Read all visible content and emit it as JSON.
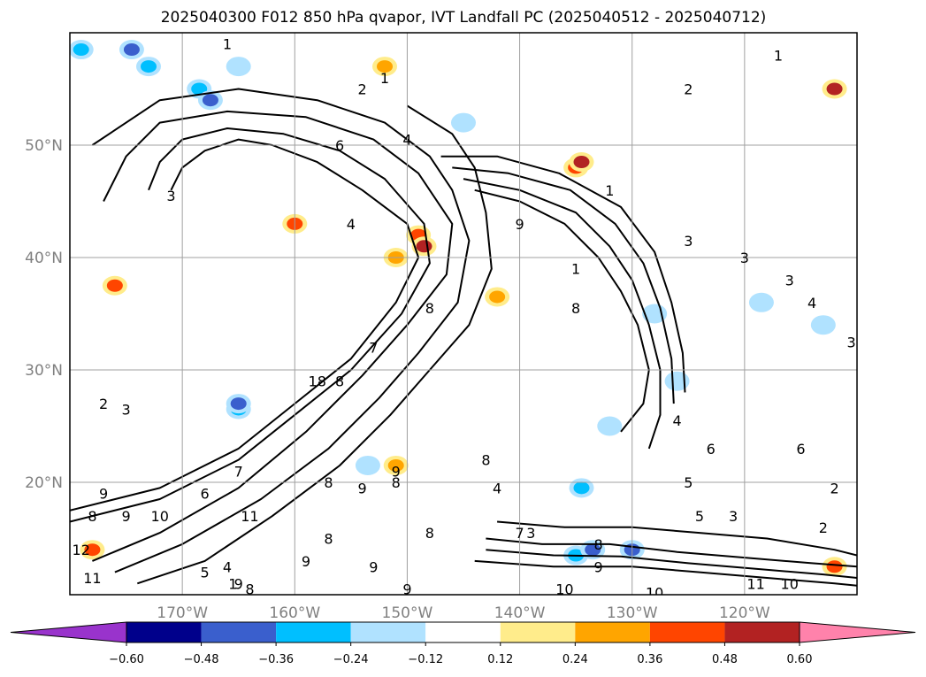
{
  "chart_data": {
    "type": "map",
    "title": "2025040300 F012 850 hPa qvapor, IVT Landfall PC (2025040512 - 2025040712)",
    "lon_range": [
      -180,
      -110
    ],
    "lat_range": [
      10,
      60
    ],
    "lat_ticks": [
      "20°N",
      "30°N",
      "40°N",
      "50°N"
    ],
    "lat_values": [
      20,
      30,
      40,
      50
    ],
    "lon_ticks": [
      "170°W",
      "160°W",
      "150°W",
      "140°W",
      "130°W",
      "120°W"
    ],
    "lon_values": [
      -170,
      -160,
      -150,
      -140,
      -130,
      -120
    ],
    "grid": true,
    "colorbar": {
      "orientation": "horizontal",
      "extend": "both",
      "ticks": [
        "−0.60",
        "−0.48",
        "−0.36",
        "−0.24",
        "−0.12",
        "0.12",
        "0.24",
        "0.36",
        "0.48",
        "0.60"
      ],
      "boundaries": [
        -0.6,
        -0.48,
        -0.36,
        -0.24,
        -0.12,
        0.12,
        0.24,
        0.36,
        0.48,
        0.6
      ],
      "colors": [
        "#9933cc",
        "#00008b",
        "#3a5fcd",
        "#00bfff",
        "#b0e2ff",
        "#ffffff",
        "#ffec8b",
        "#ffa500",
        "#ff4500",
        "#b22222",
        "#ff82ab"
      ]
    },
    "contour_labels": [
      {
        "text": "1",
        "lon": -166,
        "lat": 59
      },
      {
        "text": "2",
        "lon": -154,
        "lat": 55
      },
      {
        "text": "1",
        "lon": -152,
        "lat": 56
      },
      {
        "text": "1",
        "lon": -117,
        "lat": 58
      },
      {
        "text": "2",
        "lon": -125,
        "lat": 55
      },
      {
        "text": "6",
        "lon": -156,
        "lat": 50
      },
      {
        "text": "4",
        "lon": -150,
        "lat": 50.5
      },
      {
        "text": "3",
        "lon": -171,
        "lat": 45.5
      },
      {
        "text": "4",
        "lon": -155,
        "lat": 43
      },
      {
        "text": "9",
        "lon": -140,
        "lat": 43
      },
      {
        "text": "1",
        "lon": -132,
        "lat": 46
      },
      {
        "text": "3",
        "lon": -125,
        "lat": 41.5
      },
      {
        "text": "1",
        "lon": -135,
        "lat": 39
      },
      {
        "text": "3",
        "lon": -120,
        "lat": 40
      },
      {
        "text": "3",
        "lon": -116,
        "lat": 38
      },
      {
        "text": "4",
        "lon": -114,
        "lat": 36
      },
      {
        "text": "8",
        "lon": -148,
        "lat": 35.5
      },
      {
        "text": "8",
        "lon": -135,
        "lat": 35.5
      },
      {
        "text": "3",
        "lon": -110.5,
        "lat": 32.5
      },
      {
        "text": "7",
        "lon": -153,
        "lat": 32
      },
      {
        "text": "8",
        "lon": -156,
        "lat": 29
      },
      {
        "text": "18",
        "lon": -158,
        "lat": 29
      },
      {
        "text": "2",
        "lon": -177,
        "lat": 27
      },
      {
        "text": "3",
        "lon": -175,
        "lat": 26.5
      },
      {
        "text": "4",
        "lon": -126,
        "lat": 25.5
      },
      {
        "text": "6",
        "lon": -123,
        "lat": 23
      },
      {
        "text": "6",
        "lon": -115,
        "lat": 23
      },
      {
        "text": "8",
        "lon": -143,
        "lat": 22
      },
      {
        "text": "7",
        "lon": -165,
        "lat": 21
      },
      {
        "text": "8",
        "lon": -157,
        "lat": 20
      },
      {
        "text": "9",
        "lon": -154,
        "lat": 19.5
      },
      {
        "text": "8",
        "lon": -151,
        "lat": 20
      },
      {
        "text": "9",
        "lon": -151,
        "lat": 21
      },
      {
        "text": "4",
        "lon": -142,
        "lat": 19.5
      },
      {
        "text": "5",
        "lon": -125,
        "lat": 20
      },
      {
        "text": "2",
        "lon": -112,
        "lat": 19.5
      },
      {
        "text": "9",
        "lon": -177,
        "lat": 19
      },
      {
        "text": "6",
        "lon": -168,
        "lat": 19
      },
      {
        "text": "8",
        "lon": -178,
        "lat": 17
      },
      {
        "text": "9",
        "lon": -175,
        "lat": 17
      },
      {
        "text": "10",
        "lon": -172,
        "lat": 17
      },
      {
        "text": "11",
        "lon": -164,
        "lat": 17
      },
      {
        "text": "5",
        "lon": -124,
        "lat": 17
      },
      {
        "text": "3",
        "lon": -121,
        "lat": 17
      },
      {
        "text": "2",
        "lon": -113,
        "lat": 16
      },
      {
        "text": "7",
        "lon": -140,
        "lat": 15.5
      },
      {
        "text": "8",
        "lon": -148,
        "lat": 15.5
      },
      {
        "text": "8",
        "lon": -157,
        "lat": 15
      },
      {
        "text": "3",
        "lon": -139,
        "lat": 15.5
      },
      {
        "text": "12",
        "lon": -179,
        "lat": 14
      },
      {
        "text": "8",
        "lon": -133,
        "lat": 14.5
      },
      {
        "text": "9",
        "lon": -159,
        "lat": 13
      },
      {
        "text": "9",
        "lon": -153,
        "lat": 12.5
      },
      {
        "text": "9",
        "lon": -133,
        "lat": 12.5
      },
      {
        "text": "4",
        "lon": -166,
        "lat": 12.5
      },
      {
        "text": "5",
        "lon": -168,
        "lat": 12
      },
      {
        "text": "1",
        "lon": -165.5,
        "lat": 11
      },
      {
        "text": "11",
        "lon": -178,
        "lat": 11.5
      },
      {
        "text": "9",
        "lon": -165,
        "lat": 11
      },
      {
        "text": "8",
        "lon": -164,
        "lat": 10.5
      },
      {
        "text": "9",
        "lon": -150,
        "lat": 10.5
      },
      {
        "text": "10",
        "lon": -136,
        "lat": 10.5
      },
      {
        "text": "10",
        "lon": -128,
        "lat": 10.2
      },
      {
        "text": "11",
        "lon": -119,
        "lat": 11
      },
      {
        "text": "10",
        "lon": -116,
        "lat": 11
      }
    ],
    "shaded_regions": [
      {
        "lon": -173,
        "lat": 57,
        "value": -0.36
      },
      {
        "lon": -174.5,
        "lat": 58.5,
        "value": -0.48
      },
      {
        "lon": -168.5,
        "lat": 55,
        "value": -0.36
      },
      {
        "lon": -167.5,
        "lat": 54,
        "value": -0.48
      },
      {
        "lon": -179,
        "lat": 58.5,
        "value": -0.36
      },
      {
        "lon": -165,
        "lat": 57,
        "value": -0.24
      },
      {
        "lon": -152,
        "lat": 57,
        "value": 0.24
      },
      {
        "lon": -145,
        "lat": 52,
        "value": -0.24
      },
      {
        "lon": -135,
        "lat": 48,
        "value": 0.36
      },
      {
        "lon": -134.5,
        "lat": 48.5,
        "value": 0.48
      },
      {
        "lon": -112,
        "lat": 55,
        "value": 0.48
      },
      {
        "lon": -160,
        "lat": 43,
        "value": 0.36
      },
      {
        "lon": -149,
        "lat": 42,
        "value": 0.36
      },
      {
        "lon": -148.5,
        "lat": 41,
        "value": 0.48
      },
      {
        "lon": -151,
        "lat": 40,
        "value": 0.24
      },
      {
        "lon": -176,
        "lat": 37.5,
        "value": 0.36
      },
      {
        "lon": -142,
        "lat": 36.5,
        "value": 0.24
      },
      {
        "lon": -128,
        "lat": 35,
        "value": -0.24
      },
      {
        "lon": -118.5,
        "lat": 36,
        "value": -0.24
      },
      {
        "lon": -113,
        "lat": 34,
        "value": -0.24
      },
      {
        "lon": -126,
        "lat": 29,
        "value": -0.24
      },
      {
        "lon": -165,
        "lat": 26.5,
        "value": -0.36
      },
      {
        "lon": -165,
        "lat": 27,
        "value": -0.48
      },
      {
        "lon": -132,
        "lat": 25,
        "value": -0.24
      },
      {
        "lon": -151,
        "lat": 21.5,
        "value": 0.24
      },
      {
        "lon": -153.5,
        "lat": 21.5,
        "value": -0.24
      },
      {
        "lon": -134.5,
        "lat": 19.5,
        "value": -0.36
      },
      {
        "lon": -135,
        "lat": 13.5,
        "value": -0.36
      },
      {
        "lon": -133.5,
        "lat": 14,
        "value": -0.48
      },
      {
        "lon": -130,
        "lat": 14,
        "value": -0.48
      },
      {
        "lon": -178,
        "lat": 14,
        "value": 0.36
      },
      {
        "lon": -112,
        "lat": 12.5,
        "value": 0.36
      }
    ],
    "streams": [
      [
        [
          -180,
          17.5
        ],
        [
          -172,
          19.5
        ],
        [
          -165,
          23
        ],
        [
          -160,
          27
        ],
        [
          -155,
          31
        ],
        [
          -151,
          36
        ],
        [
          -149,
          40
        ],
        [
          -150,
          43
        ],
        [
          -154,
          46
        ],
        [
          -158,
          48.5
        ],
        [
          -162,
          50
        ],
        [
          -165,
          50.5
        ],
        [
          -168,
          49.5
        ],
        [
          -170,
          48
        ],
        [
          -171,
          46
        ]
      ],
      [
        [
          -180,
          16.5
        ],
        [
          -172,
          18.5
        ],
        [
          -165,
          22
        ],
        [
          -160,
          26
        ],
        [
          -155,
          30
        ],
        [
          -150.5,
          35
        ],
        [
          -148,
          39.5
        ],
        [
          -148.5,
          43
        ],
        [
          -152,
          47
        ],
        [
          -156,
          49.5
        ],
        [
          -161,
          51
        ],
        [
          -166,
          51.5
        ],
        [
          -170,
          50.5
        ],
        [
          -172,
          48.5
        ],
        [
          -173,
          46
        ]
      ],
      [
        [
          -178,
          13
        ],
        [
          -172,
          15.5
        ],
        [
          -165,
          19.5
        ],
        [
          -159,
          24.5
        ],
        [
          -154,
          29.5
        ],
        [
          -150,
          34
        ],
        [
          -146.5,
          38.5
        ],
        [
          -146,
          43
        ],
        [
          -149,
          47.5
        ],
        [
          -153,
          50.5
        ],
        [
          -159,
          52.5
        ],
        [
          -166,
          53
        ],
        [
          -172,
          52
        ],
        [
          -175,
          49
        ],
        [
          -177,
          45
        ]
      ],
      [
        [
          -176,
          12
        ],
        [
          -170,
          14.5
        ],
        [
          -163,
          18.5
        ],
        [
          -157,
          23
        ],
        [
          -152.5,
          27.5
        ],
        [
          -149,
          31.5
        ],
        [
          -145.5,
          36
        ],
        [
          -144.5,
          41.5
        ],
        [
          -146,
          46
        ],
        [
          -148,
          49
        ],
        [
          -152,
          52
        ],
        [
          -158,
          54
        ],
        [
          -165,
          55
        ],
        [
          -172,
          54
        ],
        [
          -178,
          50
        ]
      ],
      [
        [
          -174,
          11
        ],
        [
          -168,
          13
        ],
        [
          -162,
          17
        ],
        [
          -156,
          21.5
        ],
        [
          -151.5,
          26
        ],
        [
          -148,
          30
        ],
        [
          -144.5,
          34
        ],
        [
          -142.5,
          39
        ],
        [
          -143,
          44
        ],
        [
          -144,
          48
        ],
        [
          -146,
          51
        ],
        [
          -150,
          53.5
        ]
      ],
      [
        [
          -144,
          46
        ],
        [
          -140,
          45
        ],
        [
          -136,
          43
        ],
        [
          -133,
          40
        ],
        [
          -131,
          37
        ],
        [
          -129.5,
          34
        ],
        [
          -128.5,
          30
        ],
        [
          -129,
          27
        ],
        [
          -131,
          24.5
        ]
      ],
      [
        [
          -145,
          47
        ],
        [
          -140,
          46
        ],
        [
          -135,
          44
        ],
        [
          -132,
          41
        ],
        [
          -130,
          38
        ],
        [
          -128.5,
          34
        ],
        [
          -127.5,
          30
        ],
        [
          -127.5,
          26
        ],
        [
          -128.5,
          23
        ]
      ],
      [
        [
          -146,
          48
        ],
        [
          -141,
          47.5
        ],
        [
          -135.5,
          46
        ],
        [
          -131.5,
          43
        ],
        [
          -129,
          39.5
        ],
        [
          -127.5,
          35.5
        ],
        [
          -126.5,
          31
        ],
        [
          -126.3,
          27
        ]
      ],
      [
        [
          -147,
          49
        ],
        [
          -142,
          49
        ],
        [
          -136.5,
          47.5
        ],
        [
          -131,
          44.5
        ],
        [
          -128,
          40.5
        ],
        [
          -126.5,
          36
        ],
        [
          -125.5,
          31.5
        ],
        [
          -125.3,
          28
        ]
      ],
      [
        [
          -143,
          15
        ],
        [
          -138,
          14.5
        ],
        [
          -132,
          14.5
        ],
        [
          -126,
          13.8
        ],
        [
          -120,
          13.3
        ],
        [
          -114,
          12.8
        ],
        [
          -110,
          12.5
        ]
      ],
      [
        [
          -143,
          14
        ],
        [
          -137,
          13.5
        ],
        [
          -131,
          13.4
        ],
        [
          -125,
          12.8
        ],
        [
          -119,
          12.3
        ],
        [
          -113,
          11.8
        ],
        [
          -110,
          11.5
        ]
      ],
      [
        [
          -144,
          13
        ],
        [
          -137,
          12.5
        ],
        [
          -130,
          12.5
        ],
        [
          -124,
          12
        ],
        [
          -118,
          11.5
        ],
        [
          -112,
          11
        ],
        [
          -110,
          10.8
        ]
      ],
      [
        [
          -142,
          16.5
        ],
        [
          -136,
          16
        ],
        [
          -130,
          16
        ],
        [
          -124,
          15.5
        ],
        [
          -118,
          15
        ],
        [
          -112,
          14
        ],
        [
          -110,
          13.5
        ]
      ]
    ]
  }
}
